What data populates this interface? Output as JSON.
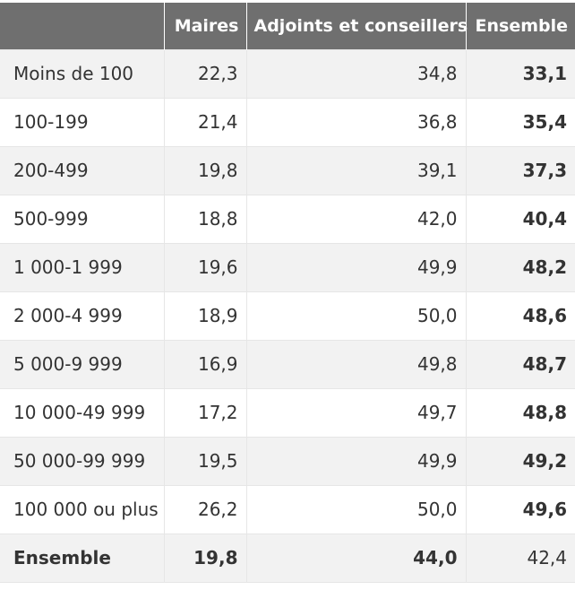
{
  "table": {
    "headers": [
      "",
      "Maires",
      "Adjoints et conseillers",
      "Ensemble"
    ],
    "rows": [
      [
        "Moins de 100",
        "22,3",
        "34,8",
        "33,1"
      ],
      [
        "100-199",
        "21,4",
        "36,8",
        "35,4"
      ],
      [
        "200-499",
        "19,8",
        "39,1",
        "37,3"
      ],
      [
        "500-999",
        "18,8",
        "42,0",
        "40,4"
      ],
      [
        "1 000-1 999",
        "19,6",
        "49,9",
        "48,2"
      ],
      [
        "2 000-4 999",
        "18,9",
        "50,0",
        "48,6"
      ],
      [
        "5 000-9 999",
        "16,9",
        "49,8",
        "48,7"
      ],
      [
        "10 000-49 999",
        "17,2",
        "49,7",
        "48,8"
      ],
      [
        "50 000-99 999",
        "19,5",
        "49,9",
        "49,2"
      ],
      [
        "100 000 ou plus",
        "26,2",
        "50,0",
        "49,6"
      ],
      [
        "Ensemble",
        "19,8",
        "44,0",
        "42,4"
      ]
    ]
  }
}
